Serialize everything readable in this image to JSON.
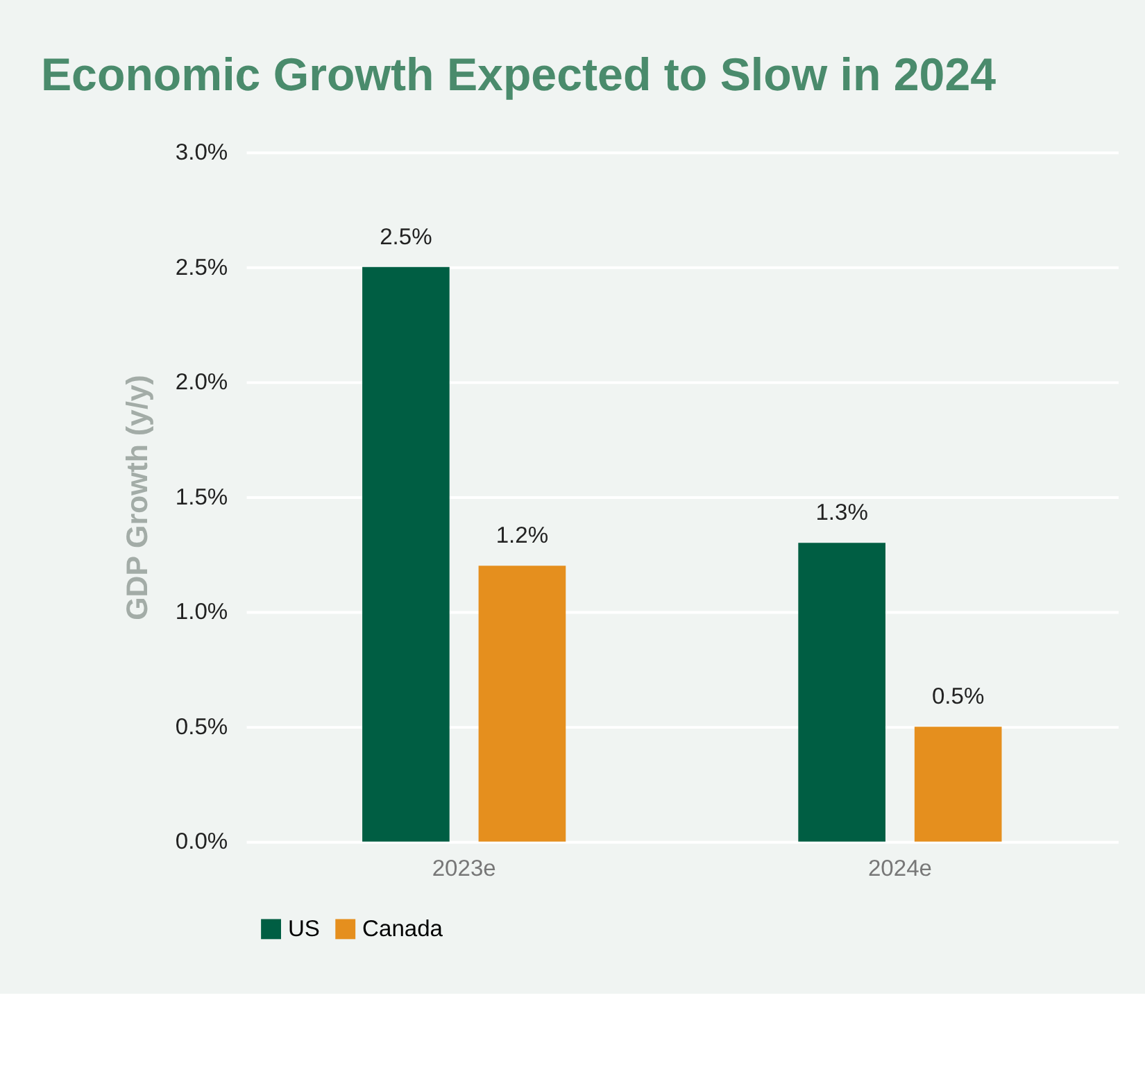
{
  "chart_data": {
    "type": "bar",
    "title": "Economic Growth Expected to Slow in 2024",
    "ylabel": "GDP Growth (y/y)",
    "categories": [
      "2023e",
      "2024e"
    ],
    "series": [
      {
        "name": "US",
        "color": "#005e43",
        "values": [
          2.5,
          1.3
        ],
        "value_labels": [
          "2.5%",
          "1.3%"
        ]
      },
      {
        "name": "Canada",
        "color": "#e58f1e",
        "values": [
          1.2,
          0.5
        ],
        "value_labels": [
          "1.2%",
          "0.5%"
        ]
      }
    ],
    "ylim": [
      0,
      3
    ],
    "yticks": [
      {
        "value": 0,
        "label": "0.0%"
      },
      {
        "value": 0.5,
        "label": "0.5%"
      },
      {
        "value": 1,
        "label": "1.0%"
      },
      {
        "value": 1.5,
        "label": "1.5%"
      },
      {
        "value": 2,
        "label": "2.0%"
      },
      {
        "value": 2.5,
        "label": "2.5%"
      },
      {
        "value": 3,
        "label": "3.0%"
      }
    ],
    "grid": "y",
    "legend": "bottom"
  }
}
